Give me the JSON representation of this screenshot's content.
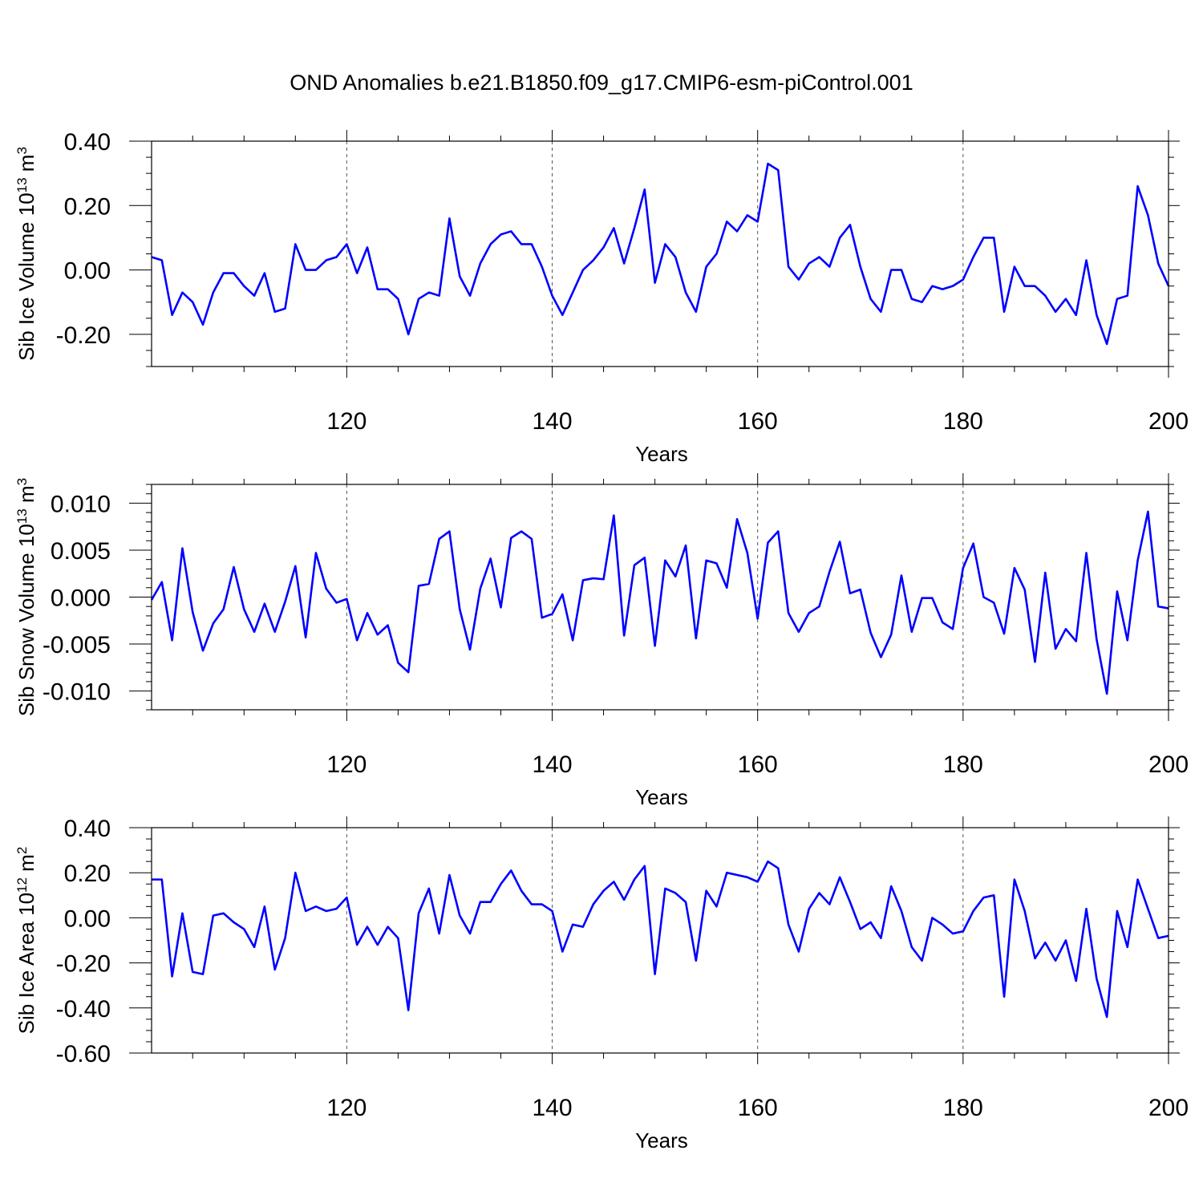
{
  "title": "OND Anomalies b.e21.B1850.f09_g17.CMIP6-esm-piControl.001",
  "line_color": "#0000ff",
  "chart_data": [
    {
      "type": "line",
      "id": "ice-volume",
      "ylabel": {
        "main": "Sib Ice Volume 10",
        "sup": "13",
        "unit": " m",
        "unit_sup": "3"
      },
      "xlabel": "Years",
      "xlim": [
        101,
        200
      ],
      "ylim": [
        -0.3,
        0.4
      ],
      "x_ticks": [
        120,
        140,
        160,
        180,
        200
      ],
      "x_tick_labels": [
        "120",
        "140",
        "160",
        "180",
        "200"
      ],
      "y_ticks": [
        -0.2,
        0.0,
        0.2,
        0.4
      ],
      "y_tick_labels": [
        "-0.20",
        "0.00",
        "0.20",
        "0.40"
      ],
      "y_minor_step": 0.05,
      "x_start": 101,
      "values": [
        0.04,
        0.03,
        -0.14,
        -0.07,
        -0.1,
        -0.17,
        -0.07,
        -0.01,
        -0.01,
        -0.05,
        -0.08,
        -0.01,
        -0.13,
        -0.12,
        0.08,
        0.0,
        0.0,
        0.03,
        0.04,
        0.08,
        -0.01,
        0.07,
        -0.06,
        -0.06,
        -0.09,
        -0.2,
        -0.09,
        -0.07,
        -0.08,
        0.16,
        -0.02,
        -0.08,
        0.02,
        0.08,
        0.11,
        0.12,
        0.08,
        0.08,
        0.01,
        -0.08,
        -0.14,
        -0.07,
        0.0,
        0.03,
        0.07,
        0.13,
        0.02,
        0.13,
        0.25,
        -0.04,
        0.08,
        0.04,
        -0.07,
        -0.13,
        0.01,
        0.05,
        0.15,
        0.12,
        0.17,
        0.15,
        0.33,
        0.31,
        0.01,
        -0.03,
        0.02,
        0.04,
        0.01,
        0.1,
        0.14,
        0.01,
        -0.09,
        -0.13,
        0.0,
        0.0,
        -0.09,
        -0.1,
        -0.05,
        -0.06,
        -0.05,
        -0.03,
        0.04,
        0.1,
        0.1,
        -0.13,
        0.01,
        -0.05,
        -0.05,
        -0.08,
        -0.13,
        -0.09,
        -0.14,
        0.03,
        -0.14,
        -0.23,
        -0.09,
        -0.08,
        0.26,
        0.17,
        0.02,
        -0.05
      ]
    },
    {
      "type": "line",
      "id": "snow-volume",
      "ylabel": {
        "main": "Sib Snow Volume 10",
        "sup": "13",
        "unit": " m",
        "unit_sup": "3"
      },
      "xlabel": "Years",
      "xlim": [
        101,
        200
      ],
      "ylim": [
        -0.012,
        0.012
      ],
      "x_ticks": [
        120,
        140,
        160,
        180,
        200
      ],
      "x_tick_labels": [
        "120",
        "140",
        "160",
        "180",
        "200"
      ],
      "y_ticks": [
        -0.01,
        -0.005,
        0.0,
        0.005,
        0.01
      ],
      "y_tick_labels": [
        "-0.010",
        "-0.005",
        "0.000",
        "0.005",
        "0.010"
      ],
      "y_minor_step": 0.001,
      "x_start": 101,
      "values": [
        -0.0003,
        0.0016,
        -0.0046,
        0.0052,
        -0.0016,
        -0.0057,
        -0.0028,
        -0.0013,
        0.0032,
        -0.0013,
        -0.0037,
        -0.0007,
        -0.0037,
        -0.0005,
        0.0033,
        -0.0043,
        0.0047,
        0.0009,
        -0.0006,
        -0.0002,
        -0.0046,
        -0.0017,
        -0.004,
        -0.003,
        -0.007,
        -0.008,
        0.0012,
        0.0014,
        0.0062,
        0.007,
        -0.0013,
        -0.0056,
        0.0009,
        0.0041,
        -0.0011,
        0.0063,
        0.007,
        0.0062,
        -0.0022,
        -0.0018,
        0.0003,
        -0.0046,
        0.0018,
        0.002,
        0.0019,
        0.0087,
        -0.0041,
        0.0034,
        0.0042,
        -0.0052,
        0.0039,
        0.0022,
        0.0055,
        -0.0044,
        0.0039,
        0.0036,
        0.001,
        0.0083,
        0.0047,
        -0.0023,
        0.0058,
        0.007,
        -0.0017,
        -0.0037,
        -0.0017,
        -0.001,
        0.0027,
        0.0059,
        0.0004,
        0.0008,
        -0.0038,
        -0.0064,
        -0.004,
        0.0023,
        -0.0037,
        -0.0001,
        -0.0001,
        -0.0027,
        -0.0034,
        0.0031,
        0.0057,
        0.0,
        -0.0006,
        -0.0039,
        0.0031,
        0.0008,
        -0.0069,
        0.0026,
        -0.0055,
        -0.0034,
        -0.0047,
        0.0047,
        -0.0045,
        -0.0103,
        0.0006,
        -0.0046,
        0.0039,
        0.0091,
        -0.001,
        -0.0012
      ]
    },
    {
      "type": "line",
      "id": "ice-area",
      "ylabel": {
        "main": "Sib Ice Area 10",
        "sup": "12",
        "unit": " m",
        "unit_sup": "2"
      },
      "xlabel": "Years",
      "xlim": [
        101,
        200
      ],
      "ylim": [
        -0.6,
        0.4
      ],
      "x_ticks": [
        120,
        140,
        160,
        180,
        200
      ],
      "x_tick_labels": [
        "120",
        "140",
        "160",
        "180",
        "200"
      ],
      "y_ticks": [
        -0.6,
        -0.4,
        -0.2,
        0.0,
        0.2,
        0.4
      ],
      "y_tick_labels": [
        "-0.60",
        "-0.40",
        "-0.20",
        "0.00",
        "0.20",
        "0.40"
      ],
      "y_minor_step": 0.05,
      "x_start": 101,
      "values": [
        0.17,
        0.17,
        -0.26,
        0.02,
        -0.24,
        -0.25,
        0.01,
        0.02,
        -0.02,
        -0.05,
        -0.13,
        0.05,
        -0.23,
        -0.09,
        0.2,
        0.03,
        0.05,
        0.03,
        0.04,
        0.09,
        -0.12,
        -0.04,
        -0.12,
        -0.04,
        -0.09,
        -0.41,
        0.02,
        0.13,
        -0.07,
        0.19,
        0.01,
        -0.07,
        0.07,
        0.07,
        0.15,
        0.21,
        0.12,
        0.06,
        0.06,
        0.03,
        -0.15,
        -0.03,
        -0.04,
        0.06,
        0.12,
        0.16,
        0.08,
        0.17,
        0.23,
        -0.25,
        0.13,
        0.11,
        0.07,
        -0.19,
        0.12,
        0.05,
        0.2,
        0.19,
        0.18,
        0.16,
        0.25,
        0.22,
        -0.03,
        -0.15,
        0.04,
        0.11,
        0.06,
        0.18,
        0.07,
        -0.05,
        -0.02,
        -0.09,
        0.14,
        0.03,
        -0.13,
        -0.19,
        0.0,
        -0.03,
        -0.07,
        -0.06,
        0.03,
        0.09,
        0.1,
        -0.35,
        0.17,
        0.03,
        -0.18,
        -0.11,
        -0.19,
        -0.1,
        -0.28,
        0.04,
        -0.27,
        -0.44,
        0.03,
        -0.13,
        0.17,
        0.04,
        -0.09,
        -0.08
      ]
    }
  ]
}
